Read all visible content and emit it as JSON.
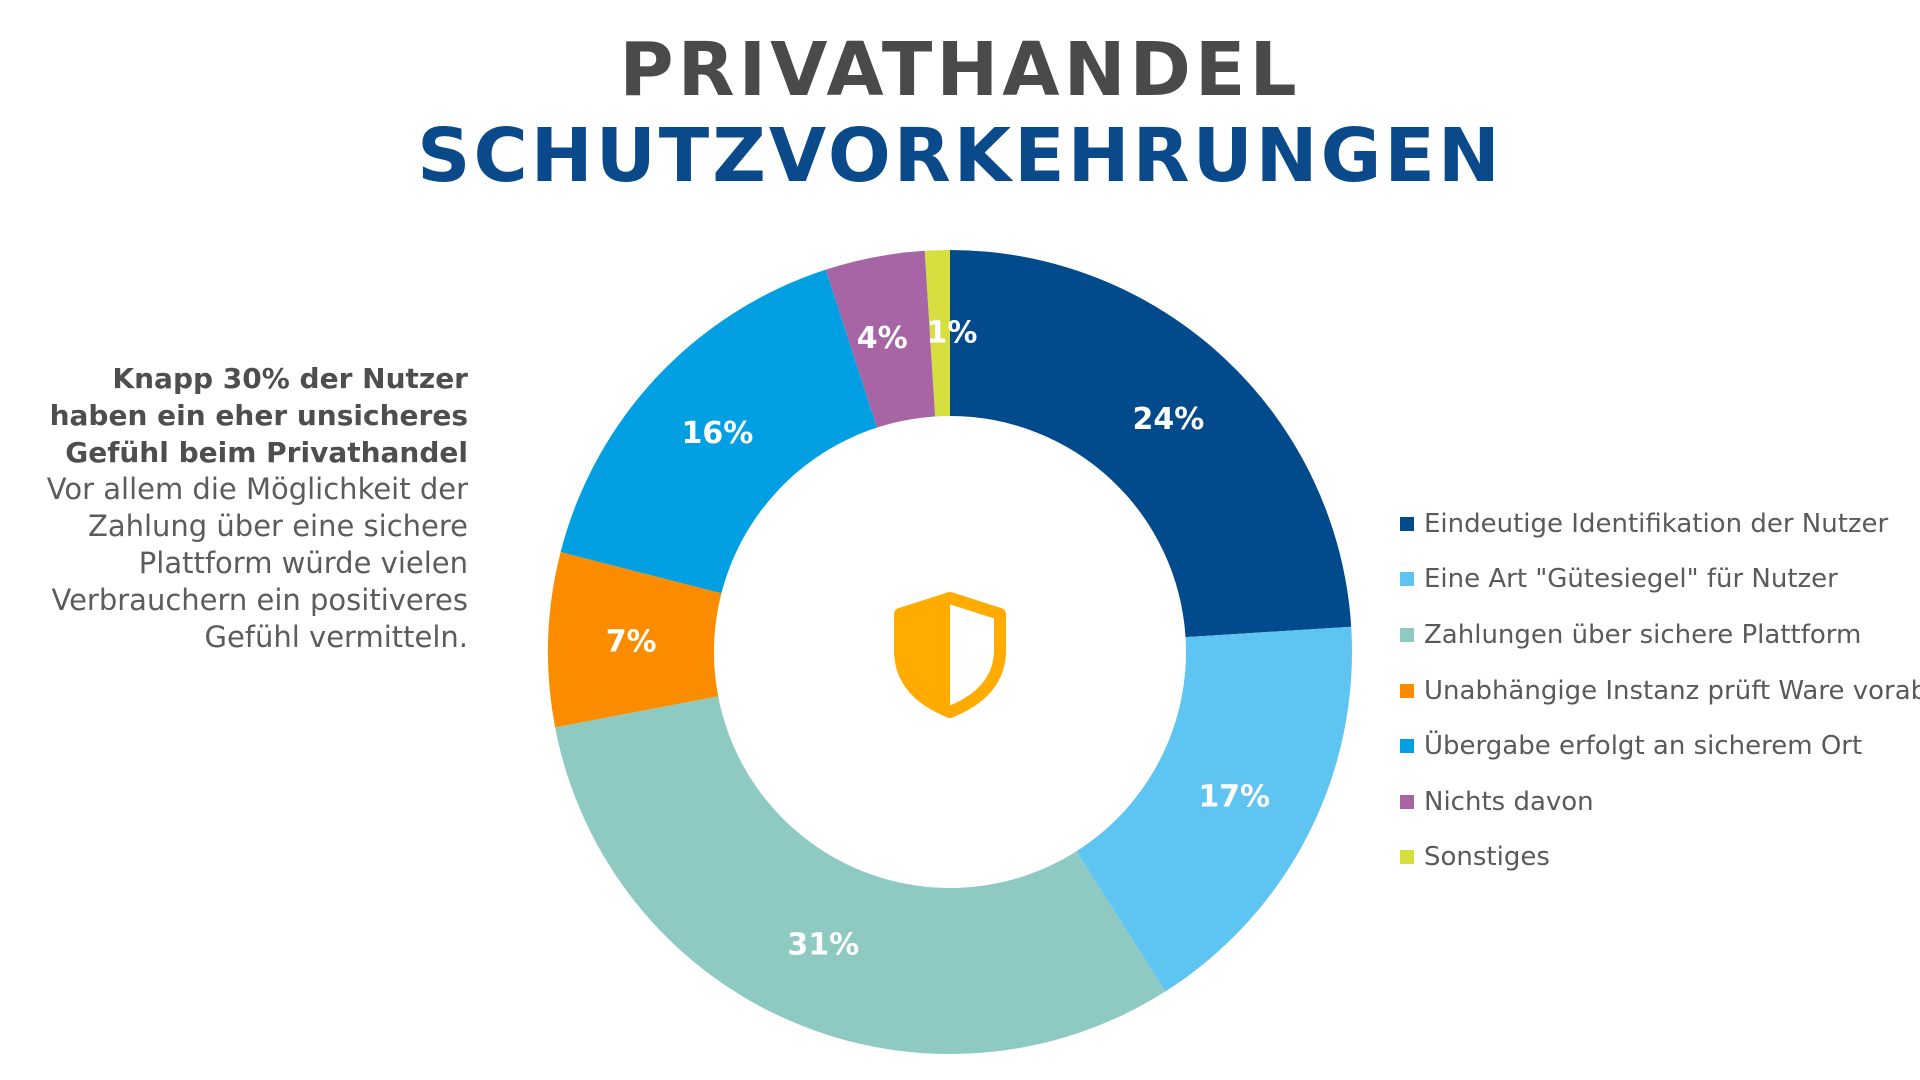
{
  "title": {
    "line1": "PRIVATHANDEL",
    "line2": "SCHUTZVORKEHRUNGEN"
  },
  "side_text": {
    "headline": "Knapp 30% der Nutzer haben ein eher unsicheres Gefühl beim Privathandel",
    "body": "Vor allem die Möglichkeit der Zahlung über eine sichere Plattform würde vielen Verbrauchern ein positiveres Gefühl vermitteln."
  },
  "center_icon": "shield-icon",
  "colors": {
    "title_gray": "#4a4a4a",
    "title_blue": "#0a4a8a",
    "icon_orange": "#ffab00"
  },
  "chart_data": {
    "type": "pie",
    "variant": "donut",
    "start_angle_deg": 0,
    "direction": "clockwise",
    "legend_position": "right",
    "series": [
      {
        "name": "Eindeutige Identifikation der Nutzer",
        "value": 24,
        "label": "24%",
        "color": "#014a8c"
      },
      {
        "name": "Eine Art \"Gütesiegel\" für Nutzer",
        "value": 17,
        "label": "17%",
        "color": "#5ec4f1"
      },
      {
        "name": "Zahlungen über sichere Plattform",
        "value": 31,
        "label": "31%",
        "color": "#8ecac2"
      },
      {
        "name": "Unabhängige Instanz prüft Ware vorab",
        "value": 7,
        "label": "7%",
        "color": "#fb8c00"
      },
      {
        "name": "Übergabe erfolgt an sicherem Ort",
        "value": 16,
        "label": "16%",
        "color": "#029fe3"
      },
      {
        "name": "Nichts davon",
        "value": 4,
        "label": "4%",
        "color": "#a765a5"
      },
      {
        "name": "Sonstiges",
        "value": 1,
        "label": "1%",
        "color": "#d6df3f"
      }
    ]
  }
}
